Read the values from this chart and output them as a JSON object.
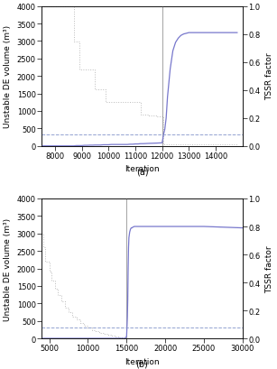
{
  "subplot_a": {
    "xlim": [
      7500,
      15000
    ],
    "ylim_left": [
      0,
      4000
    ],
    "ylim_right": [
      0.0,
      1.0
    ],
    "xlabel": "Iteration",
    "ylabel_left": "Unstable DE volume (m³)",
    "ylabel_right": "TSSR factor",
    "vline_x": 12000,
    "xticks": [
      8000,
      9000,
      10000,
      11000,
      12000,
      13000,
      14000
    ],
    "unstable_x": [
      7500,
      8700,
      8700,
      8900,
      8900,
      9500,
      9500,
      9900,
      9900,
      10500,
      10500,
      10800,
      10800,
      11200,
      11200,
      11500,
      11500,
      11800,
      11800,
      12050,
      12050,
      14800
    ],
    "unstable_y": [
      3980,
      3980,
      2990,
      2990,
      2180,
      2180,
      1630,
      1630,
      1250,
      1250,
      1250,
      1250,
      1250,
      1250,
      900,
      900,
      870,
      870,
      850,
      850,
      50,
      50
    ],
    "tssr_x": [
      7500,
      8700,
      8800,
      9000,
      9100,
      9200,
      9300,
      9400,
      9500,
      9600,
      9700,
      9800,
      9900,
      10000,
      10100,
      10200,
      10300,
      10400,
      10500,
      10600,
      10700,
      10800,
      10900,
      11000,
      11100,
      11200,
      11300,
      11500,
      11800,
      12000,
      12050,
      12100,
      12150,
      12200,
      12300,
      12400,
      12500,
      12600,
      12700,
      12800,
      13000,
      13500,
      14000,
      14800
    ],
    "tssr_y": [
      0.0,
      0.0,
      0.002,
      0.002,
      0.004,
      0.004,
      0.005,
      0.005,
      0.006,
      0.006,
      0.006,
      0.008,
      0.008,
      0.008,
      0.01,
      0.01,
      0.01,
      0.01,
      0.01,
      0.01,
      0.01,
      0.012,
      0.012,
      0.014,
      0.014,
      0.016,
      0.016,
      0.018,
      0.02,
      0.022,
      0.08,
      0.12,
      0.2,
      0.35,
      0.55,
      0.68,
      0.74,
      0.77,
      0.79,
      0.8,
      0.81,
      0.81,
      0.81,
      0.81
    ],
    "hline_y_right": 0.08,
    "hline_color": "#8899cc",
    "unstable_color": "#bbbbbb",
    "tssr_color": "#7777cc",
    "vline_color": "#999999"
  },
  "subplot_b": {
    "xlim": [
      4000,
      30000
    ],
    "ylim_left": [
      0,
      4000
    ],
    "ylim_right": [
      0.0,
      1.0
    ],
    "xlabel": "Iteration",
    "ylabel_left": "Unstable DE volume (m³)",
    "ylabel_right": "TSSR factor",
    "vline_x": 15000,
    "xticks": [
      5000,
      10000,
      15000,
      20000,
      25000,
      30000
    ],
    "unstable_x": [
      4000,
      4200,
      4200,
      4500,
      4500,
      5000,
      5000,
      5300,
      5300,
      5700,
      5700,
      6100,
      6100,
      6500,
      6500,
      7000,
      7000,
      7500,
      7500,
      8000,
      8000,
      8500,
      8500,
      9000,
      9000,
      9500,
      9500,
      10000,
      10000,
      10500,
      10500,
      11000,
      11000,
      11500,
      11500,
      12000,
      12000,
      12500,
      12500,
      13000,
      13000,
      13500,
      13500,
      14000,
      14000,
      14500,
      14500,
      15000,
      15000,
      30000
    ],
    "unstable_y": [
      3000,
      3000,
      2600,
      2600,
      2200,
      2200,
      1900,
      1900,
      1650,
      1650,
      1430,
      1430,
      1230,
      1230,
      1050,
      1050,
      890,
      890,
      750,
      750,
      630,
      630,
      530,
      530,
      440,
      440,
      365,
      365,
      300,
      300,
      245,
      245,
      198,
      198,
      158,
      158,
      125,
      125,
      98,
      98,
      75,
      75,
      55,
      55,
      38,
      38,
      22,
      22,
      12,
      12
    ],
    "tssr_x": [
      4000,
      14800,
      14900,
      15000,
      15050,
      15100,
      15150,
      15200,
      15250,
      15300,
      15400,
      15500,
      15600,
      15700,
      15800,
      16000,
      16500,
      17000,
      18000,
      20000,
      25000,
      30000
    ],
    "tssr_y": [
      0.0,
      0.0,
      0.005,
      0.015,
      0.08,
      0.15,
      0.28,
      0.5,
      0.65,
      0.72,
      0.76,
      0.78,
      0.79,
      0.79,
      0.795,
      0.8,
      0.8,
      0.8,
      0.8,
      0.8,
      0.8,
      0.79
    ],
    "hline_y_right": 0.08,
    "hline_color": "#8899cc",
    "unstable_color": "#bbbbbb",
    "tssr_color": "#7777cc",
    "vline_color": "#999999"
  },
  "fig_width": 3.07,
  "fig_height": 4.1,
  "dpi": 100,
  "fontsize": 6.5
}
